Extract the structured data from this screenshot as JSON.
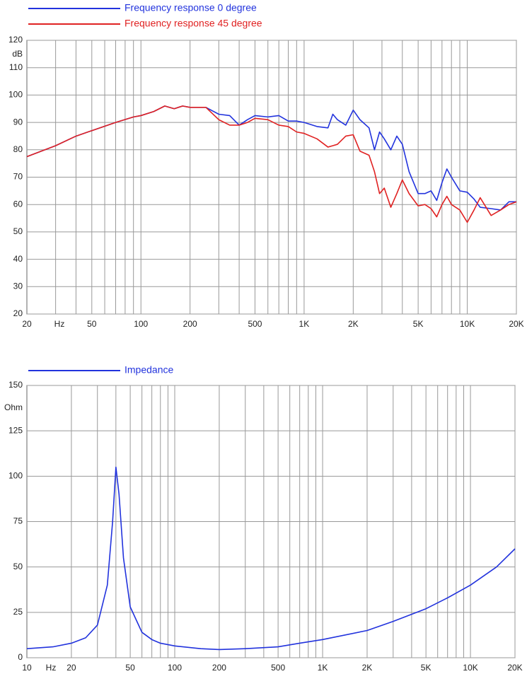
{
  "chart_data": [
    {
      "type": "line",
      "xscale": "log",
      "ylabel": "dB",
      "xlabel": "Hz",
      "xlim": [
        20,
        20000
      ],
      "ylim": [
        20,
        120
      ],
      "xticks": [
        20,
        50,
        100,
        200,
        500,
        {
          "value": 1000,
          "label": "1K"
        },
        {
          "value": 2000,
          "label": "2K"
        },
        {
          "value": 5000,
          "label": "5K"
        },
        {
          "value": 10000,
          "label": "10K"
        },
        {
          "value": 20000,
          "label": "20K"
        }
      ],
      "yticks": [
        20,
        30,
        40,
        50,
        60,
        70,
        80,
        90,
        100,
        110,
        120
      ],
      "xgrid": [
        30,
        40,
        50,
        60,
        70,
        80,
        90,
        100,
        200,
        300,
        400,
        500,
        600,
        700,
        800,
        900,
        1000,
        2000,
        3000,
        4000,
        5000,
        6000,
        7000,
        8000,
        9000,
        10000,
        20000
      ],
      "grid": true,
      "x": [
        20,
        30,
        40,
        50,
        70,
        90,
        100,
        120,
        140,
        160,
        180,
        200,
        250,
        300,
        350,
        400,
        450,
        500,
        600,
        700,
        800,
        900,
        1000,
        1200,
        1400,
        1500,
        1600,
        1800,
        2000,
        2200,
        2500,
        2700,
        2900,
        3100,
        3400,
        3700,
        4000,
        4400,
        5000,
        5500,
        6000,
        6500,
        7000,
        7500,
        8000,
        9000,
        10000,
        11000,
        12000,
        14000,
        16000,
        18000,
        20000
      ],
      "series": [
        {
          "name": "Frequency response 0 degree",
          "color": "#2233dd",
          "values": [
            77.5,
            81.5,
            85,
            87,
            90,
            92,
            92.5,
            94,
            96,
            95,
            96,
            95.5,
            95.5,
            93,
            92.5,
            89,
            91,
            92.5,
            92,
            92.5,
            90.5,
            90.5,
            90,
            88.5,
            88,
            93,
            91,
            89,
            94.5,
            91,
            88,
            80,
            86.5,
            84,
            80,
            85,
            82,
            72,
            64,
            64,
            65,
            61.5,
            68,
            73,
            70,
            65,
            64.5,
            62,
            59,
            58.5,
            58,
            61,
            61
          ]
        },
        {
          "name": "Frequency response 45 degree",
          "color": "#e02222",
          "values": [
            77.5,
            81.5,
            85,
            87,
            90,
            92,
            92.5,
            94,
            96,
            95,
            96,
            95.5,
            95.5,
            91,
            89,
            89,
            90,
            91.5,
            91,
            89,
            88.5,
            86.5,
            86,
            84,
            81,
            81.5,
            82,
            85,
            85.5,
            79.5,
            78,
            72,
            64,
            66,
            59,
            64,
            69,
            64,
            59.5,
            60,
            58.5,
            55.5,
            60,
            63,
            60,
            58,
            53.5,
            58,
            62.5,
            56,
            58,
            60,
            61
          ]
        }
      ]
    },
    {
      "type": "line",
      "xscale": "log",
      "ylabel": "Ohm",
      "xlabel": "Hz",
      "xlim": [
        10,
        20000
      ],
      "ylim": [
        0,
        150
      ],
      "xticks": [
        10,
        20,
        50,
        100,
        200,
        500,
        {
          "value": 1000,
          "label": "1K"
        },
        {
          "value": 2000,
          "label": "2K"
        },
        {
          "value": 5000,
          "label": "5K"
        },
        {
          "value": 10000,
          "label": "10K"
        },
        {
          "value": 20000,
          "label": "20K"
        }
      ],
      "yticks": [
        0,
        25,
        50,
        75,
        100,
        125,
        150
      ],
      "xgrid": [
        20,
        30,
        40,
        50,
        60,
        70,
        80,
        90,
        100,
        200,
        300,
        400,
        500,
        600,
        700,
        800,
        900,
        1000,
        2000,
        3000,
        4000,
        5000,
        6000,
        7000,
        8000,
        9000,
        10000,
        20000
      ],
      "grid": true,
      "x": [
        10,
        15,
        20,
        25,
        30,
        35,
        38,
        40,
        42,
        45,
        50,
        60,
        70,
        80,
        100,
        150,
        200,
        300,
        500,
        700,
        1000,
        2000,
        3000,
        5000,
        7000,
        10000,
        15000,
        20000
      ],
      "series": [
        {
          "name": "Impedance",
          "color": "#2233dd",
          "values": [
            5,
            6,
            8,
            11,
            18,
            40,
            75,
            105,
            90,
            55,
            28,
            14,
            10,
            8,
            6.5,
            5,
            4.5,
            5,
            6,
            8,
            10,
            15,
            20,
            27,
            33,
            40,
            50,
            60
          ]
        }
      ]
    }
  ]
}
